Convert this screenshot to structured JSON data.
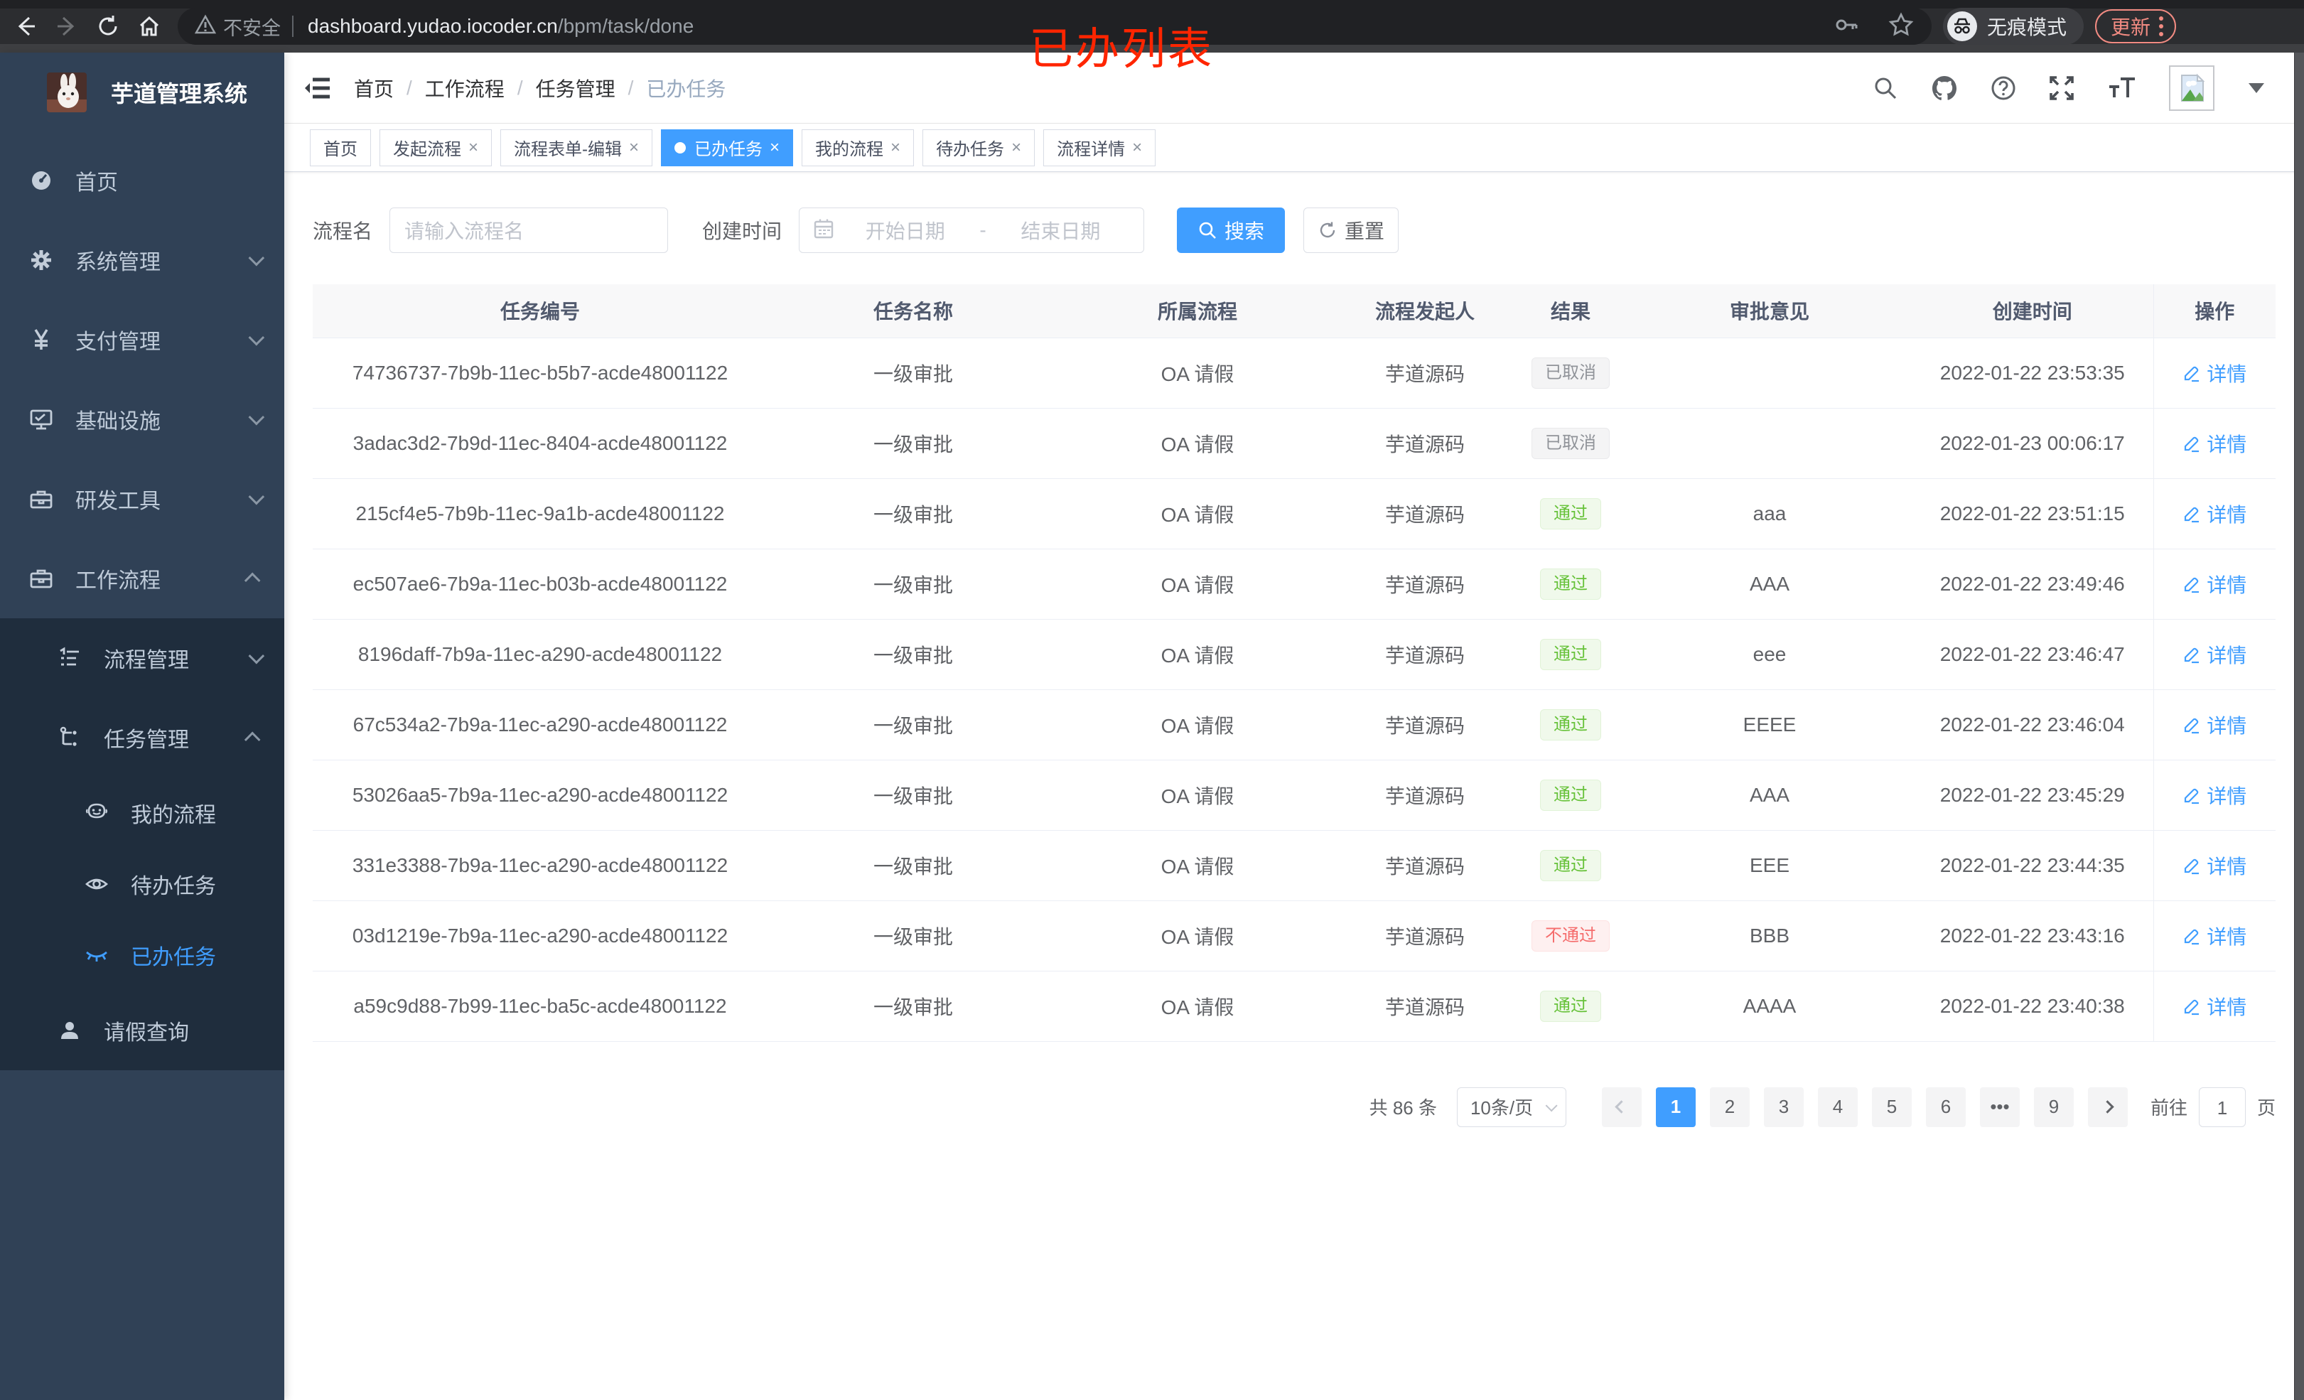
{
  "ui": {
    "close_glyph": "×",
    "breadcrumb_separator": "/"
  },
  "browser": {
    "security_label": "不安全",
    "url_host": "dashboard.yudao.iocoder.cn",
    "url_path": "/bpm/task/done",
    "incognito_label": "无痕模式",
    "update_button": "更新",
    "annotation": "已办列表"
  },
  "sidebar": {
    "logo_title": "芋道管理系统",
    "items": {
      "home": {
        "label": "首页",
        "icon": "dashboard-icon"
      },
      "system": {
        "label": "系统管理",
        "icon": "gear-icon"
      },
      "pay": {
        "label": "支付管理",
        "icon": "yen-icon"
      },
      "infra": {
        "label": "基础设施",
        "icon": "monitor-icon"
      },
      "devtool": {
        "label": "研发工具",
        "icon": "toolbox-icon"
      },
      "workflow": {
        "label": "工作流程",
        "icon": "briefcase-icon"
      },
      "process_mgmt": {
        "label": "流程管理",
        "icon": "list-icon"
      },
      "task_mgmt": {
        "label": "任务管理",
        "icon": "flow-icon"
      },
      "my_process": {
        "label": "我的流程",
        "icon": "robot-icon"
      },
      "todo_task": {
        "label": "待办任务",
        "icon": "eye-icon"
      },
      "done_task": {
        "label": "已办任务",
        "icon": "eye-closed-icon",
        "active": true
      },
      "leave_query": {
        "label": "请假查询",
        "icon": "user-icon"
      }
    }
  },
  "header": {
    "breadcrumb": {
      "b0": "首页",
      "b1": "工作流程",
      "b2": "任务管理",
      "b3": "已办任务"
    }
  },
  "tabs": [
    {
      "label": "首页",
      "closable": false,
      "active": false
    },
    {
      "label": "发起流程",
      "closable": true,
      "active": false
    },
    {
      "label": "流程表单-编辑",
      "closable": true,
      "active": false
    },
    {
      "label": "已办任务",
      "closable": true,
      "active": true
    },
    {
      "label": "我的流程",
      "closable": true,
      "active": false
    },
    {
      "label": "待办任务",
      "closable": true,
      "active": false
    },
    {
      "label": "流程详情",
      "closable": true,
      "active": false
    }
  ],
  "filters": {
    "name_label": "流程名",
    "name_placeholder": "请输入流程名",
    "time_label": "创建时间",
    "start_placeholder": "开始日期",
    "range_separator": "-",
    "end_placeholder": "结束日期",
    "search_button": "搜索",
    "reset_button": "重置"
  },
  "table": {
    "columns": [
      "任务编号",
      "任务名称",
      "所属流程",
      "流程发起人",
      "结果",
      "审批意见",
      "创建时间",
      "操作"
    ],
    "action_label": "详情",
    "rows": [
      {
        "id": "74736737-7b9b-11ec-b5b7-acde48001122",
        "name": "一级审批",
        "process": "OA 请假",
        "starter": "芋道源码",
        "result": "已取消",
        "result_type": "info",
        "comment": "",
        "time": "2022-01-22 23:53:35"
      },
      {
        "id": "3adac3d2-7b9d-11ec-8404-acde48001122",
        "name": "一级审批",
        "process": "OA 请假",
        "starter": "芋道源码",
        "result": "已取消",
        "result_type": "info",
        "comment": "",
        "time": "2022-01-23 00:06:17"
      },
      {
        "id": "215cf4e5-7b9b-11ec-9a1b-acde48001122",
        "name": "一级审批",
        "process": "OA 请假",
        "starter": "芋道源码",
        "result": "通过",
        "result_type": "success",
        "comment": "aaa",
        "time": "2022-01-22 23:51:15"
      },
      {
        "id": "ec507ae6-7b9a-11ec-b03b-acde48001122",
        "name": "一级审批",
        "process": "OA 请假",
        "starter": "芋道源码",
        "result": "通过",
        "result_type": "success",
        "comment": "AAA",
        "time": "2022-01-22 23:49:46"
      },
      {
        "id": "8196daff-7b9a-11ec-a290-acde48001122",
        "name": "一级审批",
        "process": "OA 请假",
        "starter": "芋道源码",
        "result": "通过",
        "result_type": "success",
        "comment": "eee",
        "time": "2022-01-22 23:46:47"
      },
      {
        "id": "67c534a2-7b9a-11ec-a290-acde48001122",
        "name": "一级审批",
        "process": "OA 请假",
        "starter": "芋道源码",
        "result": "通过",
        "result_type": "success",
        "comment": "EEEE",
        "time": "2022-01-22 23:46:04"
      },
      {
        "id": "53026aa5-7b9a-11ec-a290-acde48001122",
        "name": "一级审批",
        "process": "OA 请假",
        "starter": "芋道源码",
        "result": "通过",
        "result_type": "success",
        "comment": "AAA",
        "time": "2022-01-22 23:45:29"
      },
      {
        "id": "331e3388-7b9a-11ec-a290-acde48001122",
        "name": "一级审批",
        "process": "OA 请假",
        "starter": "芋道源码",
        "result": "通过",
        "result_type": "success",
        "comment": "EEE",
        "time": "2022-01-22 23:44:35"
      },
      {
        "id": "03d1219e-7b9a-11ec-a290-acde48001122",
        "name": "一级审批",
        "process": "OA 请假",
        "starter": "芋道源码",
        "result": "不通过",
        "result_type": "danger",
        "comment": "BBB",
        "time": "2022-01-22 23:43:16"
      },
      {
        "id": "a59c9d88-7b99-11ec-ba5c-acde48001122",
        "name": "一级审批",
        "process": "OA 请假",
        "starter": "芋道源码",
        "result": "通过",
        "result_type": "success",
        "comment": "AAAA",
        "time": "2022-01-22 23:40:38"
      }
    ]
  },
  "pagination": {
    "total_text": "共 86 条",
    "page_size": "10条/页",
    "pages": [
      "1",
      "2",
      "3",
      "4",
      "5",
      "6",
      "•••",
      "9"
    ],
    "active_page": "1",
    "goto_label": "前往",
    "goto_value": "1",
    "page_unit": "页"
  },
  "colors": {
    "accent": "#409EFF",
    "success": "#67c23a",
    "danger": "#f56c6c",
    "info": "#909399",
    "sidebar": "#304156",
    "submenu": "#1f2d3d"
  }
}
